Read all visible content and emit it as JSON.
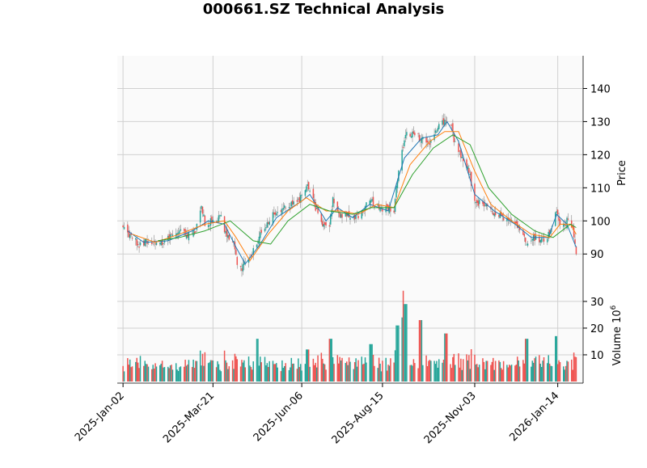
{
  "title": "000661.SZ Technical Analysis",
  "colors": {
    "up": "#26a69a",
    "down": "#ef5350",
    "volume_up": "#26a69a",
    "volume_down": "#ef5350",
    "ma_fast": "#1f77b4",
    "ma_mid": "#ff7f0e",
    "ma_slow": "#2ca02c",
    "panel_bg": "#fafafa",
    "grid": "#d0d0d0"
  },
  "chart_data": [
    {
      "type": "candlestick",
      "panel": "price",
      "ylabel": "Price",
      "ylim": [
        82,
        145
      ],
      "yticks": [
        90,
        100,
        110,
        120,
        130,
        140
      ],
      "x_range": [
        "2024-12-28",
        "2026-02-05"
      ],
      "xticks": [
        "2025-Jan-02",
        "2025-Mar-21",
        "2025-Jun-06",
        "2025-Aug-15",
        "2025-Nov-03",
        "2026-Jan-14"
      ],
      "xtick_dates": [
        "2025-01-02",
        "2025-03-21",
        "2025-06-06",
        "2025-08-15",
        "2025-11-03",
        "2026-01-14"
      ],
      "grid": true,
      "close_path": [
        [
          "2025-01-02",
          99
        ],
        [
          "2025-01-09",
          95
        ],
        [
          "2025-01-16",
          93
        ],
        [
          "2025-01-23",
          94
        ],
        [
          "2025-02-06",
          93
        ],
        [
          "2025-02-13",
          96
        ],
        [
          "2025-02-20",
          97
        ],
        [
          "2025-02-27",
          96
        ],
        [
          "2025-03-06",
          97
        ],
        [
          "2025-03-11",
          105
        ],
        [
          "2025-03-14",
          99
        ],
        [
          "2025-03-21",
          100
        ],
        [
          "2025-03-28",
          101
        ],
        [
          "2025-04-02",
          95
        ],
        [
          "2025-04-08",
          93
        ],
        [
          "2025-04-11",
          87
        ],
        [
          "2025-04-15",
          86
        ],
        [
          "2025-04-18",
          88
        ],
        [
          "2025-04-24",
          90
        ],
        [
          "2025-04-30",
          95
        ],
        [
          "2025-05-08",
          100
        ],
        [
          "2025-05-15",
          103
        ],
        [
          "2025-05-22",
          104
        ],
        [
          "2025-05-29",
          105
        ],
        [
          "2025-06-06",
          107
        ],
        [
          "2025-06-11",
          111
        ],
        [
          "2025-06-17",
          105
        ],
        [
          "2025-06-24",
          99
        ],
        [
          "2025-06-30",
          99
        ],
        [
          "2025-07-03",
          107
        ],
        [
          "2025-07-08",
          102
        ],
        [
          "2025-07-15",
          102
        ],
        [
          "2025-07-22",
          101
        ],
        [
          "2025-07-29",
          103
        ],
        [
          "2025-08-05",
          107
        ],
        [
          "2025-08-08",
          105
        ],
        [
          "2025-08-15",
          103
        ],
        [
          "2025-08-20",
          104
        ],
        [
          "2025-08-25",
          103
        ],
        [
          "2025-08-28",
          113
        ],
        [
          "2025-09-01",
          121
        ],
        [
          "2025-09-04",
          127
        ],
        [
          "2025-09-10",
          126
        ],
        [
          "2025-09-17",
          125
        ],
        [
          "2025-09-24",
          123
        ],
        [
          "2025-09-30",
          127
        ],
        [
          "2025-10-09",
          131
        ],
        [
          "2025-10-14",
          128
        ],
        [
          "2025-10-17",
          123
        ],
        [
          "2025-10-23",
          119
        ],
        [
          "2025-10-29",
          115
        ],
        [
          "2025-11-03",
          106
        ],
        [
          "2025-11-10",
          105
        ],
        [
          "2025-11-17",
          103
        ],
        [
          "2025-11-24",
          102
        ],
        [
          "2025-12-01",
          100
        ],
        [
          "2025-12-08",
          99
        ],
        [
          "2025-12-15",
          96
        ],
        [
          "2025-12-18",
          93
        ],
        [
          "2025-12-25",
          95
        ],
        [
          "2025-12-31",
          94
        ],
        [
          "2026-01-07",
          96
        ],
        [
          "2026-01-12",
          103
        ],
        [
          "2026-01-16",
          99
        ],
        [
          "2026-01-20",
          98
        ],
        [
          "2026-01-23",
          101
        ],
        [
          "2026-01-27",
          98
        ],
        [
          "2026-01-30",
          91
        ]
      ],
      "moving_averages": [
        {
          "color_key": "ma_fast",
          "values": [
            [
              "2025-01-06",
              97
            ],
            [
              "2025-01-20",
              93.5
            ],
            [
              "2025-02-10",
              94
            ],
            [
              "2025-03-03",
              97
            ],
            [
              "2025-03-17",
              100
            ],
            [
              "2025-03-31",
              99
            ],
            [
              "2025-04-10",
              92
            ],
            [
              "2025-04-18",
              87
            ],
            [
              "2025-05-01",
              93
            ],
            [
              "2025-05-15",
              101
            ],
            [
              "2025-06-06",
              106
            ],
            [
              "2025-06-13",
              108
            ],
            [
              "2025-06-27",
              100
            ],
            [
              "2025-07-07",
              104
            ],
            [
              "2025-07-20",
              101
            ],
            [
              "2025-08-04",
              105
            ],
            [
              "2025-08-20",
              103
            ],
            [
              "2025-09-03",
              119
            ],
            [
              "2025-09-18",
              125
            ],
            [
              "2025-10-02",
              126
            ],
            [
              "2025-10-10",
              130
            ],
            [
              "2025-10-20",
              124
            ],
            [
              "2025-11-03",
              108
            ],
            [
              "2025-11-20",
              103
            ],
            [
              "2025-12-08",
              99
            ],
            [
              "2025-12-22",
              95
            ],
            [
              "2026-01-06",
              95
            ],
            [
              "2026-01-13",
              102
            ],
            [
              "2026-01-22",
              99
            ],
            [
              "2026-01-30",
              92
            ]
          ]
        },
        {
          "color_key": "ma_mid",
          "values": [
            [
              "2025-01-10",
              96
            ],
            [
              "2025-01-30",
              93.5
            ],
            [
              "2025-02-20",
              96
            ],
            [
              "2025-03-14",
              99
            ],
            [
              "2025-03-31",
              100
            ],
            [
              "2025-04-10",
              95
            ],
            [
              "2025-04-22",
              88
            ],
            [
              "2025-05-08",
              96
            ],
            [
              "2025-05-25",
              103
            ],
            [
              "2025-06-10",
              107
            ],
            [
              "2025-06-27",
              103
            ],
            [
              "2025-07-10",
              103
            ],
            [
              "2025-07-25",
              102
            ],
            [
              "2025-08-10",
              105
            ],
            [
              "2025-08-25",
              104
            ],
            [
              "2025-09-08",
              117
            ],
            [
              "2025-09-25",
              124
            ],
            [
              "2025-10-08",
              127
            ],
            [
              "2025-10-20",
              127
            ],
            [
              "2025-11-03",
              115
            ],
            [
              "2025-11-17",
              105
            ],
            [
              "2025-12-05",
              100
            ],
            [
              "2025-12-22",
              96
            ],
            [
              "2026-01-07",
              95
            ],
            [
              "2026-01-16",
              99
            ],
            [
              "2026-01-25",
              99
            ],
            [
              "2026-01-30",
              96
            ]
          ]
        },
        {
          "color_key": "ma_slow",
          "values": [
            [
              "2025-02-01",
              94
            ],
            [
              "2025-02-20",
              95
            ],
            [
              "2025-03-14",
              97
            ],
            [
              "2025-04-05",
              100
            ],
            [
              "2025-04-25",
              94
            ],
            [
              "2025-05-10",
              93
            ],
            [
              "2025-05-25",
              100
            ],
            [
              "2025-06-13",
              105
            ],
            [
              "2025-06-30",
              103
            ],
            [
              "2025-07-20",
              102
            ],
            [
              "2025-08-05",
              104
            ],
            [
              "2025-08-25",
              104
            ],
            [
              "2025-09-10",
              114
            ],
            [
              "2025-09-28",
              122
            ],
            [
              "2025-10-15",
              126
            ],
            [
              "2025-10-30",
              123
            ],
            [
              "2025-11-15",
              110
            ],
            [
              "2025-12-05",
              102
            ],
            [
              "2025-12-25",
              97
            ],
            [
              "2026-01-10",
              95
            ],
            [
              "2026-01-25",
              99
            ],
            [
              "2026-01-30",
              98
            ]
          ]
        }
      ]
    },
    {
      "type": "bar",
      "panel": "volume",
      "ylabel": "Volume  10^6",
      "ylabel_text": "Volume",
      "exponent_base": "10",
      "exponent_power": "6",
      "ylim": [
        0,
        33
      ],
      "yticks": [
        10,
        20,
        30
      ],
      "grid": true,
      "notable_bars": [
        [
          "2025-04-28",
          16
        ],
        [
          "2025-06-11",
          12
        ],
        [
          "2025-07-01",
          16
        ],
        [
          "2025-08-05",
          14
        ],
        [
          "2025-08-28",
          21
        ],
        [
          "2025-09-01",
          24
        ],
        [
          "2025-09-03",
          34
        ],
        [
          "2025-09-04",
          29
        ],
        [
          "2025-09-17",
          23
        ],
        [
          "2025-10-09",
          18
        ],
        [
          "2025-12-18",
          16
        ],
        [
          "2026-01-12",
          17
        ]
      ]
    }
  ]
}
